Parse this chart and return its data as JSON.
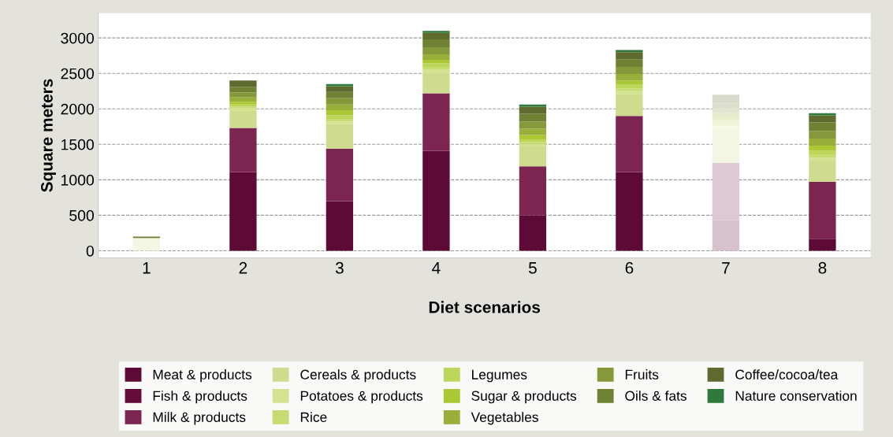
{
  "chart_data": {
    "type": "bar",
    "stacked": true,
    "xlabel": "Diet scenarios",
    "ylabel": "Square meters",
    "categories": [
      "1",
      "2",
      "3",
      "4",
      "5",
      "6",
      "7",
      "8"
    ],
    "ylim": [
      -100,
      3350
    ],
    "yticks": [
      0,
      500,
      1000,
      1500,
      2000,
      2500,
      3000
    ],
    "grid": "y",
    "legend": "bottom",
    "series": [
      {
        "name": "Meat & products",
        "color": "#5e0a36",
        "colors": [
          "#d6c2cd",
          "#5e0a36",
          "#5e0a36",
          "#5e0a36",
          "#5e0a36",
          "#5e0a36",
          "#d6c2cd",
          "#5e0a36"
        ],
        "values": [
          0,
          1110,
          700,
          1410,
          500,
          1110,
          430,
          170
        ]
      },
      {
        "name": "Fish & products",
        "color": "#650c3b",
        "colors": [
          "#d9c3ce",
          "#650c3b",
          "#650c3b",
          "#650c3b",
          "#650c3b",
          "#650c3b",
          "#d9c3ce",
          "#650c3b"
        ],
        "values": [
          0,
          0,
          0,
          0,
          0,
          0,
          0,
          0
        ]
      },
      {
        "name": "Milk & products",
        "color": "#7b2550",
        "colors": [
          "#dec8d3",
          "#7b2550",
          "#7b2550",
          "#7b2550",
          "#7b2550",
          "#7b2550",
          "#dec8d3",
          "#7b2550"
        ],
        "values": [
          0,
          620,
          740,
          810,
          690,
          790,
          810,
          800
        ]
      },
      {
        "name": "Cereals & products",
        "color": "#cfdc8f",
        "colors": [
          "#f3f6e3",
          "#cfdc8f",
          "#cfdc8f",
          "#cfdc8f",
          "#cfdc8f",
          "#cfdc8f",
          "#f3f6e3",
          "#cfdc8f"
        ],
        "values": [
          170,
          240,
          350,
          290,
          280,
          310,
          480,
          300
        ]
      },
      {
        "name": "Potatoes & products",
        "color": "#d5e28f",
        "colors": [
          "#f5f8e3",
          "#d5e28f",
          "#d5e28f",
          "#d5e28f",
          "#d5e28f",
          "#d5e28f",
          "#f5f8e3",
          "#d5e28f"
        ],
        "values": [
          0,
          40,
          30,
          40,
          30,
          40,
          40,
          40
        ]
      },
      {
        "name": "Rice",
        "color": "#c6dc70",
        "colors": [
          "#f1f6db",
          "#c6dc70",
          "#c6dc70",
          "#c6dc70",
          "#c6dc70",
          "#c6dc70",
          "#f1f6db",
          "#c6dc70"
        ],
        "values": [
          0,
          20,
          40,
          40,
          30,
          40,
          40,
          40
        ]
      },
      {
        "name": "Legumes",
        "color": "#bcd65a",
        "colors": [
          "#eef4d6",
          "#bcd65a",
          "#bcd65a",
          "#bcd65a",
          "#bcd65a",
          "#bcd65a",
          "#eef4d6",
          "#bcd65a"
        ],
        "values": [
          0,
          30,
          50,
          50,
          40,
          50,
          40,
          60
        ]
      },
      {
        "name": "Sugar & products",
        "color": "#a9c832",
        "colors": [
          "#e9f1cc",
          "#a9c832",
          "#a9c832",
          "#a9c832",
          "#a9c832",
          "#a9c832",
          "#e9f1cc",
          "#a9c832"
        ],
        "values": [
          0,
          40,
          70,
          50,
          60,
          60,
          40,
          70
        ]
      },
      {
        "name": "Vegetables",
        "color": "#9aae3a",
        "colors": [
          "#e6ebce",
          "#9aae3a",
          "#9aae3a",
          "#9aae3a",
          "#9aae3a",
          "#9aae3a",
          "#e6ebce",
          "#9aae3a"
        ],
        "values": [
          10,
          60,
          80,
          80,
          90,
          90,
          60,
          100
        ]
      },
      {
        "name": "Fruits",
        "color": "#86993a",
        "colors": [
          "#e1e6ce",
          "#86993a",
          "#86993a",
          "#86993a",
          "#86993a",
          "#86993a",
          "#e1e6ce",
          "#86993a"
        ],
        "values": [
          0,
          70,
          90,
          100,
          100,
          100,
          70,
          110
        ]
      },
      {
        "name": "Oils & fats",
        "color": "#6f8133",
        "colors": [
          "#6f8133",
          "#6f8133",
          "#6f8133",
          "#6f8133",
          "#6f8133",
          "#6f8133",
          "#dbdfcc",
          "#6f8133"
        ],
        "values": [
          20,
          80,
          90,
          110,
          110,
          110,
          80,
          120
        ]
      },
      {
        "name": "Coffee/cocoa/tea",
        "color": "#5e6a2e",
        "colors": [
          "#d7dacb",
          "#5e6a2e",
          "#5e6a2e",
          "#5e6a2e",
          "#5e6a2e",
          "#5e6a2e",
          "#d7dacb",
          "#5e6a2e"
        ],
        "values": [
          0,
          90,
          80,
          90,
          100,
          100,
          110,
          100
        ]
      },
      {
        "name": "Nature conservation",
        "color": "#2f7a3a",
        "colors": [
          "#cbdece",
          "#2f7a3a",
          "#2f7a3a",
          "#2f7a3a",
          "#2f7a3a",
          "#2f7a3a",
          "#cbdece",
          "#2f7a3a"
        ],
        "values": [
          0,
          0,
          30,
          30,
          30,
          30,
          0,
          30
        ]
      }
    ]
  }
}
